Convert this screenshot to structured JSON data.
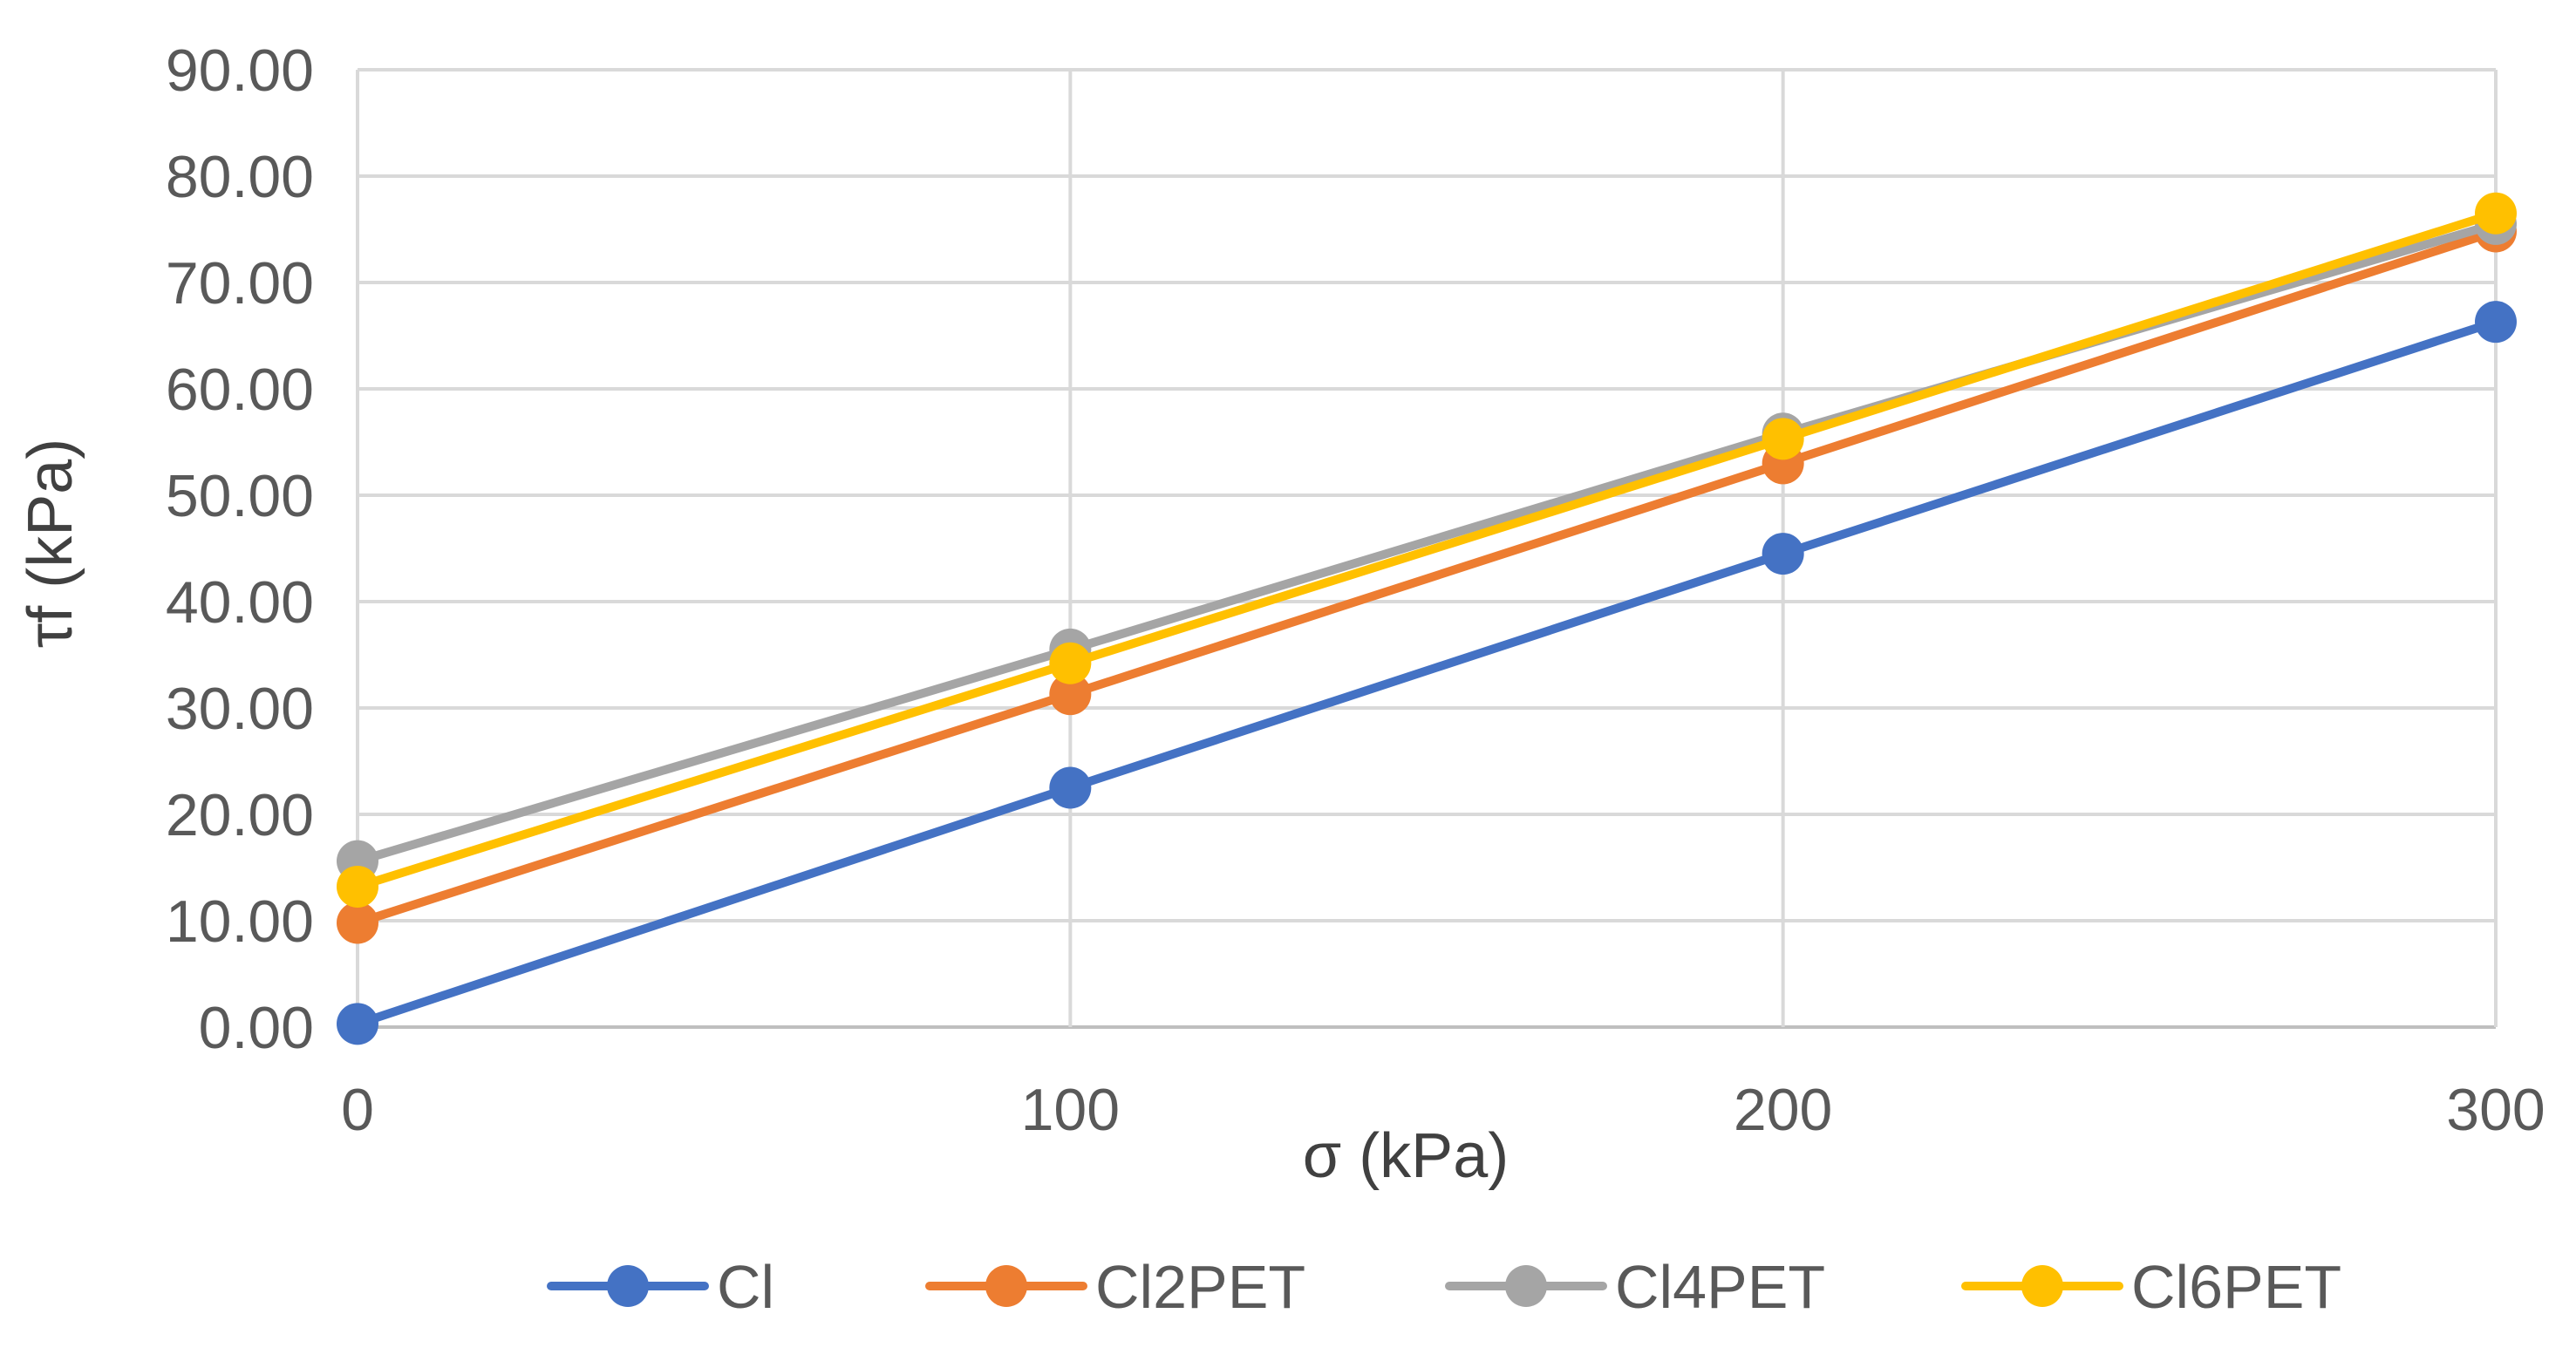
{
  "chart_data": {
    "type": "line",
    "title": "",
    "xlabel": "σ (kPa)",
    "ylabel": "τf (kPa)",
    "x": [
      0,
      100,
      200,
      300
    ],
    "xticks": [
      "0",
      "100",
      "200",
      "300"
    ],
    "xlim": [
      0,
      300
    ],
    "yticks": [
      "0.00",
      "10.00",
      "20.00",
      "30.00",
      "40.00",
      "50.00",
      "60.00",
      "70.00",
      "80.00",
      "90.00"
    ],
    "ylim": [
      0,
      90
    ],
    "grid": true,
    "legend_position": "bottom",
    "series": [
      {
        "name": "Cl",
        "color": "#4472C4",
        "values": [
          0.3,
          22.5,
          44.5,
          66.3
        ]
      },
      {
        "name": "Cl2PET",
        "color": "#ED7D31",
        "values": [
          9.8,
          31.3,
          53.0,
          74.8
        ]
      },
      {
        "name": "Cl4PET",
        "color": "#A5A5A5",
        "values": [
          15.6,
          35.5,
          55.8,
          75.5
        ]
      },
      {
        "name": "Cl6PET",
        "color": "#FFC000",
        "values": [
          13.2,
          34.2,
          55.3,
          76.5
        ]
      }
    ]
  }
}
